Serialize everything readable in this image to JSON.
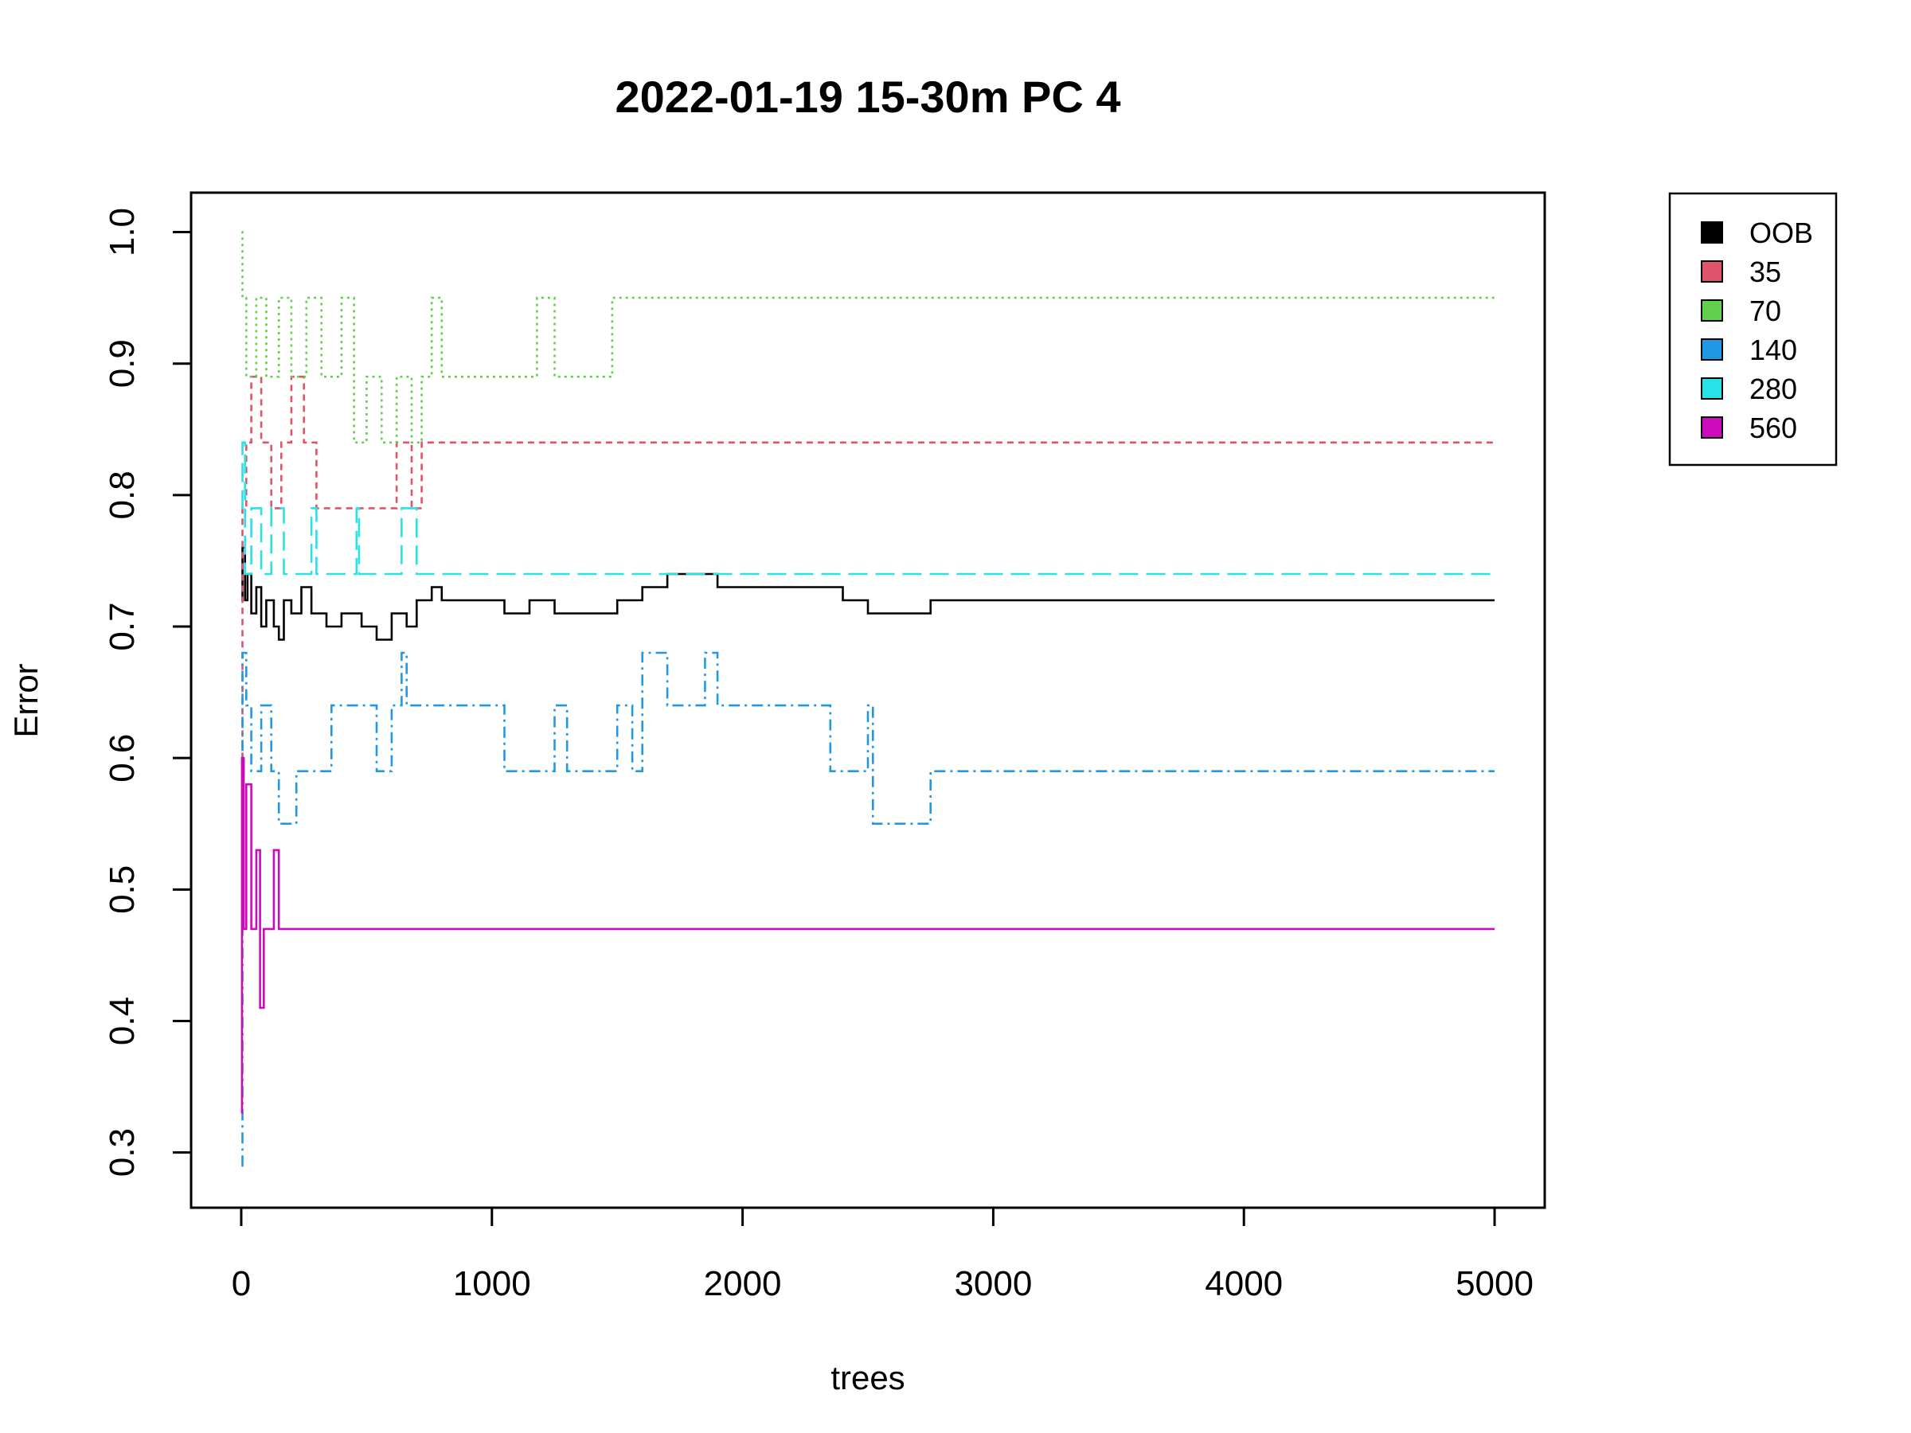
{
  "chart_data": {
    "type": "line",
    "title": "2022-01-19 15-30m PC 4",
    "xlabel": "trees",
    "ylabel": "Error",
    "xlim": [
      -200,
      5200
    ],
    "ylim": [
      0.258,
      1.03
    ],
    "x_ticks": [
      0,
      1000,
      2000,
      3000,
      4000,
      5000
    ],
    "x_tick_labels": [
      "0",
      "1000",
      "2000",
      "3000",
      "4000",
      "5000"
    ],
    "y_ticks": [
      0.3,
      0.4,
      0.5,
      0.6,
      0.7,
      0.8,
      0.9,
      1.0
    ],
    "y_tick_labels": [
      "0.3",
      "0.4",
      "0.5",
      "0.6",
      "0.7",
      "0.8",
      "0.9",
      "1.0"
    ],
    "grid": false,
    "legend_position": "outside-top-right",
    "series": [
      {
        "name": "OOB",
        "color": "#000000",
        "dash": "solid",
        "points": [
          [
            1,
            0.72
          ],
          [
            5,
            0.76
          ],
          [
            15,
            0.72
          ],
          [
            25,
            0.74
          ],
          [
            40,
            0.71
          ],
          [
            60,
            0.73
          ],
          [
            80,
            0.7
          ],
          [
            100,
            0.72
          ],
          [
            130,
            0.7
          ],
          [
            150,
            0.69
          ],
          [
            170,
            0.72
          ],
          [
            200,
            0.71
          ],
          [
            240,
            0.73
          ],
          [
            280,
            0.71
          ],
          [
            340,
            0.7
          ],
          [
            400,
            0.71
          ],
          [
            480,
            0.7
          ],
          [
            540,
            0.69
          ],
          [
            600,
            0.71
          ],
          [
            660,
            0.7
          ],
          [
            700,
            0.72
          ],
          [
            760,
            0.73
          ],
          [
            800,
            0.72
          ],
          [
            1000,
            0.72
          ],
          [
            1050,
            0.71
          ],
          [
            1150,
            0.72
          ],
          [
            1250,
            0.71
          ],
          [
            1450,
            0.71
          ],
          [
            1500,
            0.72
          ],
          [
            1600,
            0.73
          ],
          [
            1700,
            0.74
          ],
          [
            1800,
            0.74
          ],
          [
            1900,
            0.73
          ],
          [
            2300,
            0.73
          ],
          [
            2400,
            0.72
          ],
          [
            2500,
            0.71
          ],
          [
            2600,
            0.71
          ],
          [
            2750,
            0.72
          ],
          [
            5000,
            0.72
          ]
        ]
      },
      {
        "name": "35",
        "color": "#DF536B",
        "dash": "8,6",
        "points": [
          [
            1,
            0.6
          ],
          [
            5,
            0.79
          ],
          [
            20,
            0.84
          ],
          [
            40,
            0.89
          ],
          [
            80,
            0.84
          ],
          [
            120,
            0.79
          ],
          [
            160,
            0.84
          ],
          [
            200,
            0.89
          ],
          [
            250,
            0.84
          ],
          [
            300,
            0.79
          ],
          [
            450,
            0.79
          ],
          [
            600,
            0.79
          ],
          [
            620,
            0.84
          ],
          [
            680,
            0.79
          ],
          [
            720,
            0.84
          ],
          [
            750,
            0.84
          ],
          [
            5000,
            0.84
          ]
        ]
      },
      {
        "name": "70",
        "color": "#61D04F",
        "dash": "3,5",
        "points": [
          [
            1,
            1.0
          ],
          [
            5,
            0.95
          ],
          [
            20,
            0.89
          ],
          [
            60,
            0.95
          ],
          [
            100,
            0.89
          ],
          [
            150,
            0.95
          ],
          [
            200,
            0.89
          ],
          [
            260,
            0.95
          ],
          [
            320,
            0.89
          ],
          [
            400,
            0.95
          ],
          [
            450,
            0.84
          ],
          [
            500,
            0.89
          ],
          [
            560,
            0.84
          ],
          [
            620,
            0.89
          ],
          [
            680,
            0.84
          ],
          [
            720,
            0.89
          ],
          [
            760,
            0.95
          ],
          [
            800,
            0.89
          ],
          [
            1000,
            0.89
          ],
          [
            1180,
            0.95
          ],
          [
            1250,
            0.89
          ],
          [
            1450,
            0.89
          ],
          [
            1480,
            0.95
          ],
          [
            5000,
            0.95
          ]
        ]
      },
      {
        "name": "140",
        "color": "#2297E6",
        "dash": "14,6,3,6",
        "points": [
          [
            1,
            0.29
          ],
          [
            5,
            0.68
          ],
          [
            20,
            0.64
          ],
          [
            40,
            0.59
          ],
          [
            80,
            0.64
          ],
          [
            120,
            0.59
          ],
          [
            150,
            0.55
          ],
          [
            220,
            0.59
          ],
          [
            340,
            0.59
          ],
          [
            360,
            0.64
          ],
          [
            500,
            0.64
          ],
          [
            540,
            0.59
          ],
          [
            600,
            0.64
          ],
          [
            640,
            0.68
          ],
          [
            660,
            0.64
          ],
          [
            1000,
            0.64
          ],
          [
            1050,
            0.59
          ],
          [
            1250,
            0.64
          ],
          [
            1300,
            0.59
          ],
          [
            1480,
            0.59
          ],
          [
            1500,
            0.64
          ],
          [
            1560,
            0.59
          ],
          [
            1600,
            0.68
          ],
          [
            1700,
            0.64
          ],
          [
            1850,
            0.68
          ],
          [
            1900,
            0.64
          ],
          [
            2300,
            0.64
          ],
          [
            2350,
            0.59
          ],
          [
            2500,
            0.64
          ],
          [
            2520,
            0.55
          ],
          [
            2750,
            0.59
          ],
          [
            5000,
            0.59
          ]
        ]
      },
      {
        "name": "280",
        "color": "#28E2E5",
        "dash": "24,10",
        "points": [
          [
            1,
            0.79
          ],
          [
            5,
            0.84
          ],
          [
            15,
            0.74
          ],
          [
            40,
            0.79
          ],
          [
            80,
            0.74
          ],
          [
            120,
            0.79
          ],
          [
            170,
            0.74
          ],
          [
            280,
            0.79
          ],
          [
            300,
            0.74
          ],
          [
            460,
            0.79
          ],
          [
            470,
            0.74
          ],
          [
            640,
            0.79
          ],
          [
            700,
            0.74
          ],
          [
            5000,
            0.74
          ]
        ]
      },
      {
        "name": "560",
        "color": "#CD0BBC",
        "dash": "solid",
        "points": [
          [
            1,
            0.33
          ],
          [
            3,
            0.6
          ],
          [
            10,
            0.47
          ],
          [
            20,
            0.58
          ],
          [
            40,
            0.47
          ],
          [
            60,
            0.53
          ],
          [
            75,
            0.41
          ],
          [
            90,
            0.47
          ],
          [
            130,
            0.53
          ],
          [
            150,
            0.47
          ],
          [
            5000,
            0.47
          ]
        ]
      }
    ]
  }
}
